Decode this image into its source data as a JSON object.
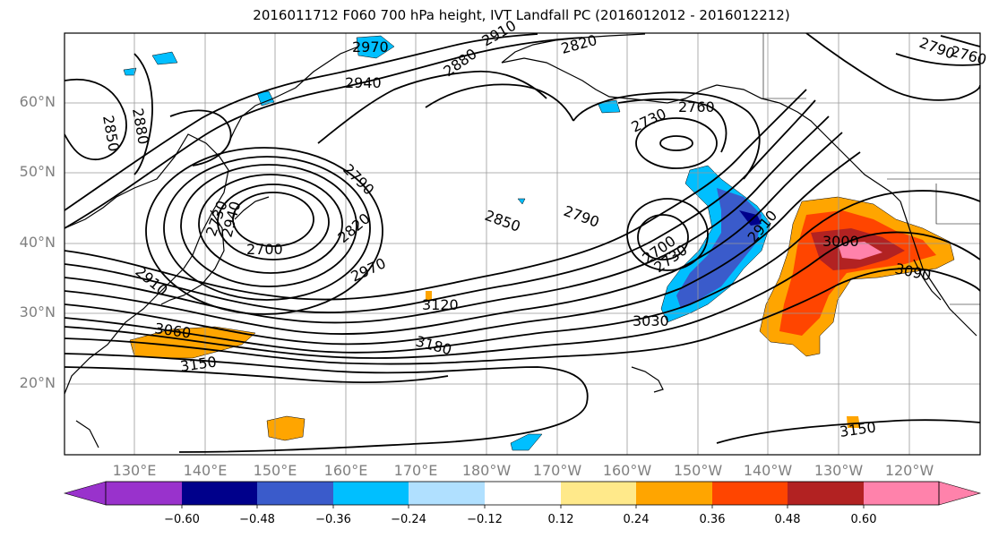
{
  "title": "2016011712 F060 700 hPa height, IVT Landfall PC (2016012012 - 2016012212)",
  "lat_labels": [
    "60°N",
    "50°N",
    "40°N",
    "30°N",
    "20°N"
  ],
  "lon_labels": [
    "130°E",
    "140°E",
    "150°E",
    "160°E",
    "170°E",
    "180°W",
    "170°W",
    "160°W",
    "150°W",
    "140°W",
    "130°W",
    "120°W"
  ],
  "contour_labels": [
    "2970",
    "2910",
    "2820",
    "2790",
    "2760",
    "2940",
    "2880",
    "2850",
    "2880",
    "2760",
    "2730",
    "2700",
    "2730",
    "2790",
    "2820",
    "2970",
    "2850",
    "2790",
    "2730",
    "2700",
    "2910",
    "3000",
    "3090",
    "2940",
    "2910",
    "3120",
    "3030",
    "3060",
    "3150",
    "3180",
    "3150"
  ],
  "colorbar": {
    "ticks": [
      "−0.60",
      "−0.48",
      "−0.36",
      "−0.24",
      "−0.12",
      "0.12",
      "0.24",
      "0.36",
      "0.48",
      "0.60"
    ],
    "colors": [
      "#9932CC",
      "#00008B",
      "#3A5BCB",
      "#00BFFF",
      "#B0E0FF",
      "#FFFFFF",
      "#FFE98A",
      "#FFA500",
      "#FF4500",
      "#B22222",
      "#FF82AB"
    ]
  }
}
